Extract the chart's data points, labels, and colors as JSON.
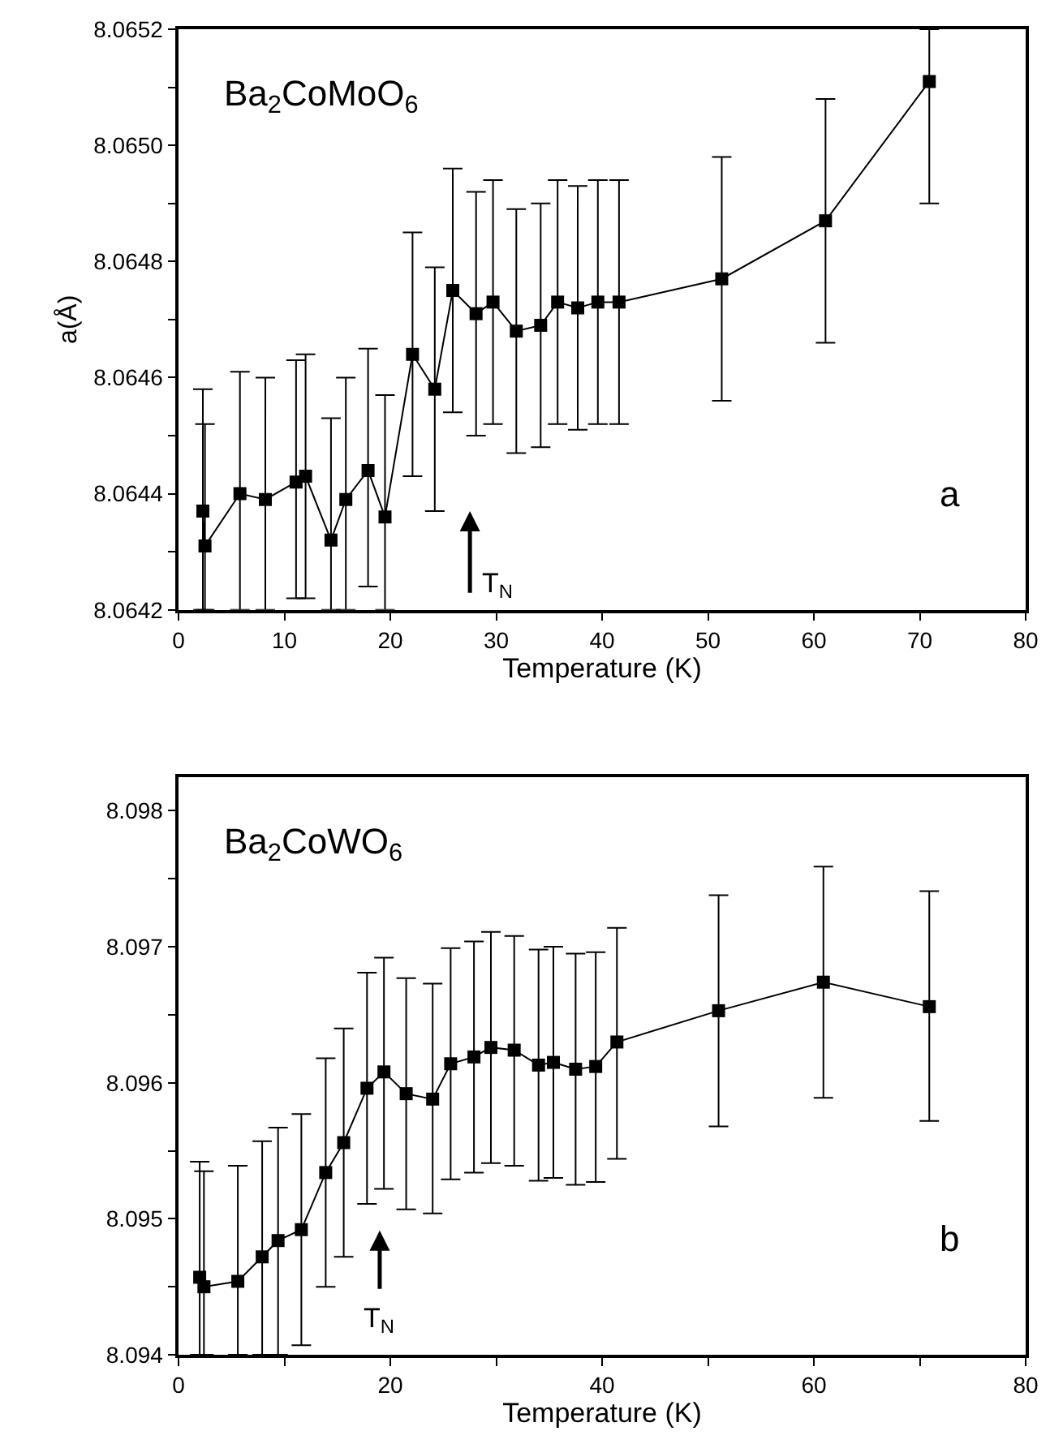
{
  "chart_data": [
    {
      "type": "line",
      "xlabel": "Temperature (K)",
      "ylabel": "a(Å)",
      "marker": "square",
      "line_style": "solid",
      "xlim": [
        0,
        80
      ],
      "ylim": [
        8.0642,
        8.0652
      ],
      "xticks": [
        0,
        10,
        20,
        30,
        40,
        50,
        60,
        70,
        80
      ],
      "yticks": [
        8.0642,
        {
          "value": 8.0643,
          "label": null
        },
        8.0644,
        {
          "value": 8.0645,
          "label": null
        },
        8.0646,
        {
          "value": 8.0647,
          "label": null
        },
        8.0648,
        {
          "value": 8.0649,
          "label": null
        },
        {
          "value": 8.065,
          "label": "8.0650"
        },
        {
          "value": 8.0651,
          "label": null
        },
        8.0652
      ],
      "annotations": [
        "Ba$_{2}$CoMoO$_{6}$",
        "a",
        "T$_{N}$"
      ],
      "series": [
        {
          "color": "#000000",
          "x": [
            2.3,
            2.5,
            5.8,
            8.2,
            11.1,
            12.0,
            14.4,
            15.8,
            17.9,
            19.5,
            22.1,
            24.2,
            25.9,
            28.1,
            29.7,
            31.9,
            34.2,
            35.8,
            37.7,
            39.6,
            41.6,
            51.3,
            61.1,
            70.9
          ],
          "values": [
            8.06437,
            8.06431,
            8.0644,
            8.06439,
            8.06442,
            8.06443,
            8.06432,
            8.06439,
            8.06444,
            8.06436,
            8.06464,
            8.06458,
            8.06475,
            8.06471,
            8.06473,
            8.06468,
            8.06469,
            8.06473,
            8.06472,
            8.06473,
            8.06473,
            8.06477,
            8.06487,
            8.06511
          ],
          "errors": [
            [
              8.0642,
              8.06458
            ],
            [
              8.0642,
              8.06452
            ],
            [
              8.0642,
              8.06461
            ],
            [
              8.0642,
              8.0646
            ],
            [
              8.06422,
              8.06463
            ],
            [
              8.06422,
              8.06464
            ],
            [
              8.0642,
              8.06453
            ],
            [
              8.0642,
              8.0646
            ],
            [
              8.06424,
              8.06465
            ],
            [
              8.0642,
              8.06457
            ],
            [
              8.06443,
              8.06485
            ],
            [
              8.06437,
              8.06479
            ],
            [
              8.06454,
              8.06496
            ],
            [
              8.0645,
              8.06492
            ],
            [
              8.06452,
              8.06494
            ],
            [
              8.06447,
              8.06489
            ],
            [
              8.06448,
              8.0649
            ],
            [
              8.06452,
              8.06494
            ],
            [
              8.06451,
              8.06493
            ],
            [
              8.06452,
              8.06494
            ],
            [
              8.06452,
              8.06494
            ],
            [
              8.06456,
              8.06498
            ],
            [
              8.06466,
              8.06508
            ],
            [
              8.0649,
              8.0652
            ]
          ]
        }
      ]
    },
    {
      "type": "line",
      "xlabel": "Temperature (K)",
      "marker": "square",
      "line_style": "solid",
      "xlim": [
        0,
        80
      ],
      "ylim": [
        8.094,
        8.09825
      ],
      "xticks": [
        0,
        {
          "value": 10,
          "label": null
        },
        20,
        {
          "value": 30,
          "label": null
        },
        40,
        {
          "value": 50,
          "label": null
        },
        60,
        {
          "value": 70,
          "label": null
        },
        80
      ],
      "yticks": [
        8.094,
        {
          "value": 8.0945,
          "label": null
        },
        8.095,
        {
          "value": 8.0955,
          "label": null
        },
        8.096,
        {
          "value": 8.0965,
          "label": null
        },
        8.097,
        {
          "value": 8.0975,
          "label": null
        },
        8.098
      ],
      "annotations": [
        "Ba$_{2}$CoWO$_{6}$",
        "b",
        "T$_{N}$"
      ],
      "series": [
        {
          "color": "#000000",
          "x": [
            2.0,
            2.4,
            5.6,
            7.9,
            9.4,
            11.6,
            13.9,
            15.6,
            17.8,
            19.4,
            21.5,
            24.0,
            25.7,
            27.9,
            29.5,
            31.7,
            34.0,
            35.4,
            37.5,
            39.4,
            41.4,
            51.0,
            60.9,
            70.9
          ],
          "values": [
            8.09457,
            8.0945,
            8.09454,
            8.09472,
            8.09484,
            8.09492,
            8.09534,
            8.09556,
            8.09596,
            8.09608,
            8.09592,
            8.09588,
            8.09614,
            8.09619,
            8.09626,
            8.09624,
            8.09613,
            8.09615,
            8.0961,
            8.09612,
            8.0963,
            8.09653,
            8.09674,
            8.09656
          ],
          "errors": [
            [
              8.094,
              8.09542
            ],
            [
              8.094,
              8.09535
            ],
            [
              8.094,
              8.09539
            ],
            [
              8.094,
              8.09557
            ],
            [
              8.094,
              8.09567
            ],
            [
              8.09407,
              8.09577
            ],
            [
              8.0945,
              8.09618
            ],
            [
              8.09472,
              8.0964
            ],
            [
              8.09511,
              8.09681
            ],
            [
              8.09522,
              8.09692
            ],
            [
              8.09507,
              8.09677
            ],
            [
              8.09504,
              8.09673
            ],
            [
              8.09529,
              8.09699
            ],
            [
              8.09534,
              8.09704
            ],
            [
              8.09541,
              8.09711
            ],
            [
              8.09539,
              8.09708
            ],
            [
              8.09528,
              8.09698
            ],
            [
              8.0953,
              8.097
            ],
            [
              8.09525,
              8.09695
            ],
            [
              8.09527,
              8.09696
            ],
            [
              8.09544,
              8.09714
            ],
            [
              8.09568,
              8.09738
            ],
            [
              8.09589,
              8.09759
            ],
            [
              8.09572,
              8.09741
            ]
          ]
        }
      ]
    }
  ]
}
